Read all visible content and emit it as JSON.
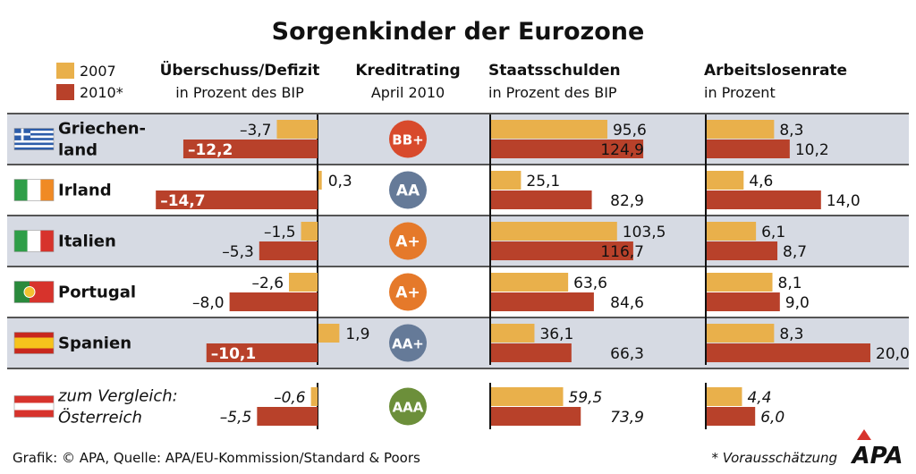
{
  "title": "Sorgenkinder der Eurozone",
  "legend": [
    {
      "label": "2007",
      "color": "#E9B04B"
    },
    {
      "label": "2010*",
      "color": "#B8412A"
    }
  ],
  "headers": {
    "defizit": [
      "Überschuss/Defizit",
      "in Prozent des BIP"
    ],
    "rating": [
      "Kreditrating",
      "April 2010"
    ],
    "schulden": [
      "Staatsschulden",
      "in Prozent des BIP"
    ],
    "arbeit": [
      "Arbeitslosenrate",
      "in Prozent"
    ]
  },
  "colors": {
    "y2007": "#E9B04B",
    "y2010": "#B8412A",
    "row_shade": "#D6DAE3",
    "rating_red": "#D84A2C",
    "rating_blue": "#657A98",
    "rating_orange": "#E5792A",
    "rating_green": "#6C8F3A"
  },
  "chart_data": {
    "type": "bar",
    "title": "Sorgenkinder der Eurozone",
    "series_names": [
      "2007",
      "2010*"
    ],
    "categories": [
      "Griechenland",
      "Irland",
      "Italien",
      "Portugal",
      "Spanien",
      "Österreich"
    ],
    "rows": [
      {
        "country": [
          "Griechen-",
          "land"
        ],
        "flag": "greece-flag",
        "italic": false,
        "defizit": [
          {
            "value": -3.7,
            "label": "–3,7"
          },
          {
            "value": -12.2,
            "label": "–12,2"
          }
        ],
        "rating": "BB+",
        "rating_color": "#D84A2C",
        "schulden": [
          {
            "value": 95.6,
            "label": "95,6"
          },
          {
            "value": 124.9,
            "label": "124,9"
          }
        ],
        "arbeit": [
          {
            "value": 8.3,
            "label": "8,3"
          },
          {
            "value": 10.2,
            "label": "10,2"
          }
        ]
      },
      {
        "country": [
          "Irland"
        ],
        "flag": "ireland-flag",
        "italic": false,
        "defizit": [
          {
            "value": 0.3,
            "label": "0,3"
          },
          {
            "value": -14.7,
            "label": "–14,7"
          }
        ],
        "rating": "AA",
        "rating_color": "#657A98",
        "schulden": [
          {
            "value": 25.1,
            "label": "25,1"
          },
          {
            "value": 82.9,
            "label": "82,9"
          }
        ],
        "arbeit": [
          {
            "value": 4.6,
            "label": "4,6"
          },
          {
            "value": 14.0,
            "label": "14,0"
          }
        ]
      },
      {
        "country": [
          "Italien"
        ],
        "flag": "italy-flag",
        "italic": false,
        "defizit": [
          {
            "value": -1.5,
            "label": "–1,5"
          },
          {
            "value": -5.3,
            "label": "–5,3"
          }
        ],
        "rating": "A+",
        "rating_color": "#E5792A",
        "schulden": [
          {
            "value": 103.5,
            "label": "103,5"
          },
          {
            "value": 116.7,
            "label": "116,7"
          }
        ],
        "arbeit": [
          {
            "value": 6.1,
            "label": "6,1"
          },
          {
            "value": 8.7,
            "label": "8,7"
          }
        ]
      },
      {
        "country": [
          "Portugal"
        ],
        "flag": "portugal-flag",
        "italic": false,
        "defizit": [
          {
            "value": -2.6,
            "label": "–2,6"
          },
          {
            "value": -8.0,
            "label": "–8,0"
          }
        ],
        "rating": "A+",
        "rating_color": "#E5792A",
        "schulden": [
          {
            "value": 63.6,
            "label": "63,6"
          },
          {
            "value": 84.6,
            "label": "84,6"
          }
        ],
        "arbeit": [
          {
            "value": 8.1,
            "label": "8,1"
          },
          {
            "value": 9.0,
            "label": "9,0"
          }
        ]
      },
      {
        "country": [
          "Spanien"
        ],
        "flag": "spain-flag",
        "italic": false,
        "defizit": [
          {
            "value": 1.9,
            "label": "1,9"
          },
          {
            "value": -10.1,
            "label": "–10,1"
          }
        ],
        "rating": "AA+",
        "rating_color": "#657A98",
        "schulden": [
          {
            "value": 36.1,
            "label": "36,1"
          },
          {
            "value": 66.3,
            "label": "66,3"
          }
        ],
        "arbeit": [
          {
            "value": 8.3,
            "label": "8,3"
          },
          {
            "value": 20.0,
            "label": "20,0"
          }
        ]
      },
      {
        "country": [
          "zum Vergleich:",
          "Österreich"
        ],
        "flag": "austria-flag",
        "italic": true,
        "defizit": [
          {
            "value": -0.6,
            "label": "–0,6"
          },
          {
            "value": -5.5,
            "label": "–5,5"
          }
        ],
        "rating": "AAA",
        "rating_color": "#6C8F3A",
        "schulden": [
          {
            "value": 59.5,
            "label": "59,5"
          },
          {
            "value": 73.9,
            "label": "73,9"
          }
        ],
        "arbeit": [
          {
            "value": 4.4,
            "label": "4,4"
          },
          {
            "value": 6.0,
            "label": "6,0"
          }
        ]
      }
    ]
  },
  "footer": {
    "source": "Grafik: © APA, Quelle: APA/EU-Kommission/Standard & Poors",
    "note": "* Vorausschätzung",
    "logo": "APA"
  }
}
